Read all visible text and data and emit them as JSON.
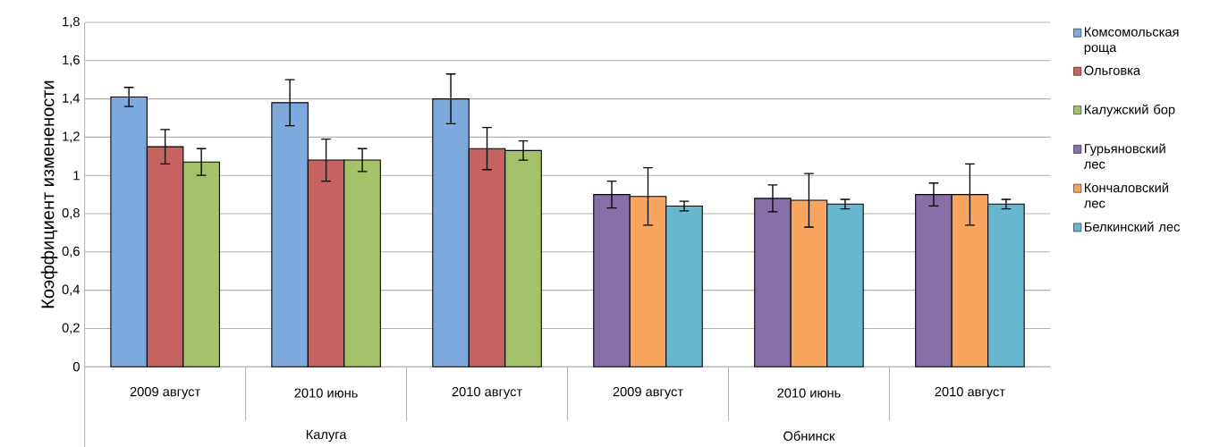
{
  "chart_data": {
    "type": "bar",
    "ylabel": "Коэффициент  изменености",
    "categories": [
      "2009 август",
      "2010 июнь",
      "2010 август",
      "2009 август",
      "2010 июнь",
      "2010 август"
    ],
    "series": [
      {
        "name": "Комсомольская роща",
        "color": "#7ea9dc",
        "values": [
          1.41,
          1.38,
          1.4,
          null,
          null,
          null
        ],
        "errors": [
          0.05,
          0.12,
          0.13,
          null,
          null,
          null
        ]
      },
      {
        "name": "Ольговка",
        "color": "#c6625f",
        "values": [
          1.15,
          1.08,
          1.14,
          null,
          null,
          null
        ],
        "errors": [
          0.09,
          0.11,
          0.11,
          null,
          null,
          null
        ]
      },
      {
        "name": "Калужский бор",
        "color": "#a5c26a",
        "values": [
          1.07,
          1.08,
          1.13,
          null,
          null,
          null
        ],
        "errors": [
          0.07,
          0.06,
          0.05,
          null,
          null,
          null
        ]
      },
      {
        "name": "Гурьяновский лес",
        "color": "#8770a8",
        "values": [
          null,
          null,
          null,
          0.9,
          0.88,
          0.9
        ],
        "errors": [
          null,
          null,
          null,
          0.07,
          0.07,
          0.06
        ]
      },
      {
        "name": "Кончаловский лес",
        "color": "#f7a55f",
        "values": [
          null,
          null,
          null,
          0.89,
          0.87,
          0.9
        ],
        "errors": [
          null,
          null,
          null,
          0.15,
          0.14,
          0.16
        ]
      },
      {
        "name": "Белкинский лес",
        "color": "#67b8cf",
        "values": [
          null,
          null,
          null,
          0.84,
          0.85,
          0.85
        ],
        "errors": [
          null,
          null,
          null,
          0.025,
          0.025,
          0.025
        ]
      }
    ],
    "annotations": [
      "Калуга",
      "Обнинск"
    ],
    "ylim": [
      0,
      1.8
    ],
    "yticks": [
      0,
      {
        "value": 0.2,
        "label": "0,2"
      },
      {
        "value": 0.4,
        "label": "0,4"
      },
      {
        "value": 0.6,
        "label": "0,6"
      },
      {
        "value": 0.8,
        "label": "0,8"
      },
      1,
      {
        "value": 1.2,
        "label": "1,2"
      },
      {
        "value": 1.4,
        "label": "1,4"
      },
      {
        "value": 1.6,
        "label": "1,6"
      },
      {
        "value": 1.8,
        "label": "1,8"
      }
    ],
    "grid": "y",
    "legend": "right"
  }
}
